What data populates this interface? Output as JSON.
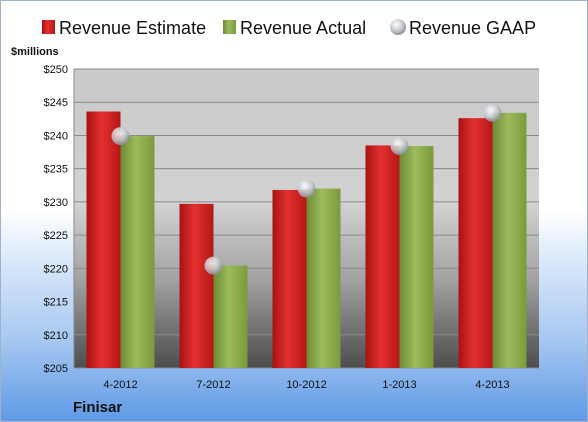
{
  "chart_data": {
    "type": "bar",
    "unit_label": "$millions",
    "categories": [
      "4-2012",
      "7-2012",
      "10-2012",
      "1-2013",
      "4-2013"
    ],
    "series": [
      {
        "name": "Revenue Estimate",
        "color": "#d91f1f",
        "values": [
          243.6,
          229.7,
          231.8,
          238.5,
          242.6
        ],
        "style": "bar"
      },
      {
        "name": "Revenue Actual",
        "color": "#8eab4f",
        "values": [
          239.9,
          220.4,
          232.0,
          238.4,
          243.4
        ],
        "style": "bar"
      },
      {
        "name": "Revenue GAAP",
        "color": "#c8ccd4",
        "values": [
          239.9,
          220.4,
          232.0,
          238.4,
          243.4
        ],
        "style": "marker"
      }
    ],
    "ylim": [
      205,
      250
    ],
    "yticks": [
      205,
      210,
      215,
      220,
      225,
      230,
      235,
      240,
      245,
      250
    ],
    "ytick_labels": [
      "$205",
      "$210",
      "$215",
      "$220",
      "$225",
      "$230",
      "$235",
      "$240",
      "$245",
      "$250"
    ],
    "legend_position": "top",
    "grid": true
  },
  "footer": {
    "company": "Finisar"
  }
}
